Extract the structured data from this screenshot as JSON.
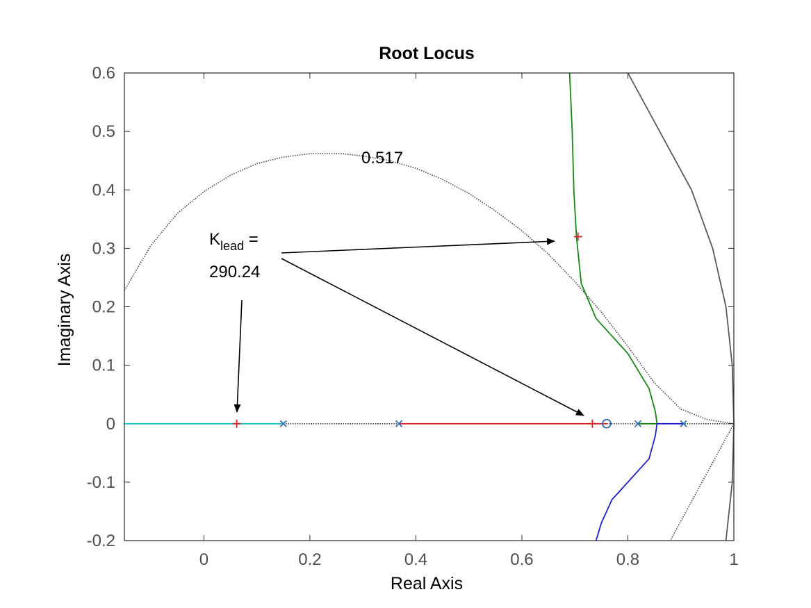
{
  "chart_data": {
    "type": "line",
    "title": "Root Locus",
    "xlabel": "Real Axis",
    "ylabel": "Imaginary Axis",
    "xlim": [
      -0.15,
      1.0
    ],
    "ylim": [
      -0.2,
      0.6
    ],
    "xticks": [
      0,
      0.2,
      0.4,
      0.6,
      0.8,
      1
    ],
    "xtick_labels": [
      "0",
      "0.2",
      "0.4",
      "0.6",
      "0.8",
      "1"
    ],
    "yticks": [
      -0.2,
      -0.1,
      0,
      0.1,
      0.2,
      0.3,
      0.4,
      0.5,
      0.6
    ],
    "ytick_labels": [
      "-0.2",
      "-0.1",
      "0",
      "0.1",
      "0.2",
      "0.3",
      "0.4",
      "0.5",
      "0.6"
    ],
    "grid": false,
    "colors": {
      "cyan": "#17becf",
      "red": "#d62728",
      "green": "#118811",
      "blue": "#1f1fd0",
      "gray": "#595959",
      "marker": "#2a6ab4",
      "dotted": "#444444"
    },
    "series": [
      {
        "color": "cyan",
        "points": [
          [
            -0.15,
            0
          ],
          [
            0.15,
            0
          ]
        ]
      },
      {
        "color": "red",
        "points": [
          [
            0.368,
            0
          ],
          [
            0.76,
            0
          ]
        ]
      },
      {
        "color": "green",
        "points": [
          [
            0.69,
            0.6
          ],
          [
            0.695,
            0.5
          ],
          [
            0.698,
            0.4
          ],
          [
            0.703,
            0.32
          ],
          [
            0.712,
            0.24
          ],
          [
            0.74,
            0.18
          ],
          [
            0.8,
            0.12
          ],
          [
            0.84,
            0.06
          ],
          [
            0.852,
            0.02
          ],
          [
            0.855,
            0
          ]
        ]
      },
      {
        "color": "green",
        "points": [
          [
            0.819,
            0
          ],
          [
            0.855,
            0
          ]
        ]
      },
      {
        "color": "blue",
        "points": [
          [
            0.855,
            0
          ],
          [
            0.905,
            0
          ]
        ]
      },
      {
        "color": "blue",
        "points": [
          [
            0.855,
            0
          ],
          [
            0.852,
            -0.02
          ],
          [
            0.84,
            -0.06
          ],
          [
            0.8,
            -0.1
          ],
          [
            0.77,
            -0.13
          ],
          [
            0.75,
            -0.17
          ],
          [
            0.74,
            -0.2
          ]
        ]
      },
      {
        "color": "gray",
        "points": [
          [
            0.8,
            0.6
          ],
          [
            0.86,
            0.5
          ],
          [
            0.92,
            0.4
          ],
          [
            0.96,
            0.3
          ],
          [
            0.985,
            0.2
          ],
          [
            0.997,
            0.1
          ],
          [
            1.0,
            0
          ],
          [
            0.997,
            -0.1
          ],
          [
            0.985,
            -0.2
          ]
        ]
      }
    ],
    "damping_curve": {
      "label": "0.517",
      "points": [
        [
          -0.15,
          0.228
        ],
        [
          -0.1,
          0.305
        ],
        [
          -0.05,
          0.36
        ],
        [
          0.0,
          0.397
        ],
        [
          0.05,
          0.425
        ],
        [
          0.1,
          0.445
        ],
        [
          0.15,
          0.456
        ],
        [
          0.2,
          0.462
        ],
        [
          0.26,
          0.462
        ],
        [
          0.3,
          0.458
        ],
        [
          0.35,
          0.45
        ],
        [
          0.4,
          0.437
        ],
        [
          0.45,
          0.418
        ],
        [
          0.5,
          0.394
        ],
        [
          0.55,
          0.364
        ],
        [
          0.6,
          0.33
        ],
        [
          0.65,
          0.29
        ],
        [
          0.7,
          0.243
        ],
        [
          0.75,
          0.191
        ],
        [
          0.8,
          0.132
        ],
        [
          0.85,
          0.07
        ],
        [
          0.9,
          0.025
        ],
        [
          0.95,
          0.007
        ],
        [
          1.0,
          0
        ]
      ],
      "mirror_points": [
        [
          1.0,
          0
        ],
        [
          0.97,
          -0.05
        ],
        [
          0.94,
          -0.1
        ],
        [
          0.91,
          -0.15
        ],
        [
          0.88,
          -0.2
        ]
      ],
      "axis_segment": [
        [
          0.15,
          0
        ],
        [
          0.368,
          0
        ],
        [
          0.905,
          0
        ],
        [
          1.0,
          0
        ]
      ]
    },
    "poles": [
      [
        0.15,
        0
      ],
      [
        0.368,
        0
      ],
      [
        0.819,
        0
      ],
      [
        0.905,
        0
      ]
    ],
    "zeros": [
      [
        0.76,
        0
      ]
    ],
    "closed_loop_poles": [
      [
        0.062,
        0
      ],
      [
        0.733,
        0
      ],
      [
        0.706,
        0.32
      ]
    ],
    "annotation": {
      "label_main": "K",
      "label_sub": "lead",
      "label_eq": " =",
      "label_value": "290.24"
    }
  }
}
